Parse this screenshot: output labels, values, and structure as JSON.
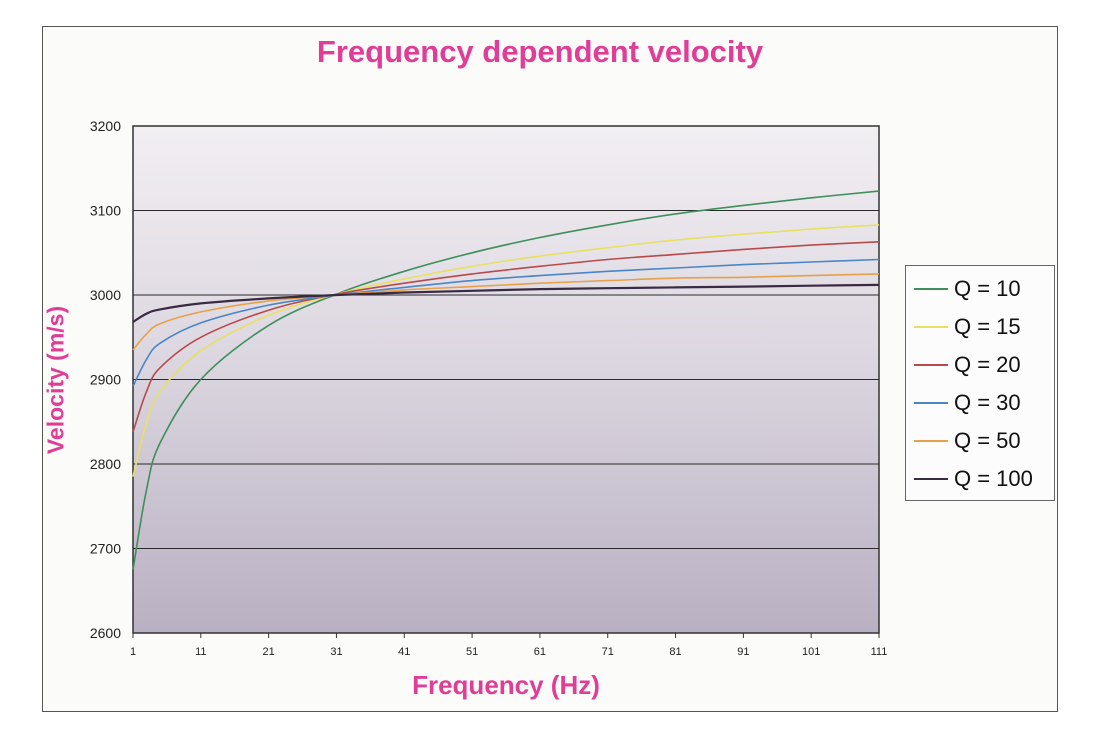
{
  "chart_data": {
    "type": "line",
    "title": "Frequency dependent velocity",
    "xlabel": "Frequency (Hz)",
    "ylabel": "Velocity (m/s)",
    "xlim": [
      1,
      111
    ],
    "ylim": [
      2600,
      3200
    ],
    "xticks": [
      1,
      11,
      21,
      31,
      41,
      51,
      61,
      71,
      81,
      91,
      101,
      111
    ],
    "yticks": [
      2600,
      2700,
      2800,
      2900,
      3000,
      3100,
      3200
    ],
    "grid": "horizontal",
    "legend_position": "right",
    "x": [
      1,
      3,
      5,
      11,
      21,
      31,
      41,
      51,
      61,
      71,
      81,
      91,
      101,
      111
    ],
    "series": [
      {
        "name": "Q = 10",
        "color": "#3f8f5c",
        "values": [
          2675,
          2770,
          2825,
          2900,
          2964,
          3001,
          3028,
          3050,
          3068,
          3083,
          3096,
          3106,
          3115,
          3123
        ]
      },
      {
        "name": "Q = 15",
        "color": "#e8e060",
        "values": [
          2785,
          2849,
          2886,
          2934,
          2976,
          3001,
          3019,
          3034,
          3046,
          3056,
          3065,
          3072,
          3078,
          3083
        ]
      },
      {
        "name": "Q = 20",
        "color": "#b84a4a",
        "values": [
          2838,
          2886,
          2914,
          2950,
          2982,
          3001,
          3014,
          3025,
          3034,
          3042,
          3048,
          3054,
          3059,
          3063
        ]
      },
      {
        "name": "Q = 30",
        "color": "#4a86c6",
        "values": [
          2892,
          2924,
          2943,
          2967,
          2988,
          3000,
          3009,
          3017,
          3023,
          3028,
          3032,
          3036,
          3039,
          3042
        ]
      },
      {
        "name": "Q = 50",
        "color": "#e8a04a",
        "values": [
          2935,
          2954,
          2966,
          2980,
          2993,
          3000,
          3006,
          3010,
          3014,
          3017,
          3020,
          3021,
          3023,
          3025
        ]
      },
      {
        "name": "Q = 100",
        "color": "#3a2a44",
        "values": [
          2968,
          2978,
          2983,
          2990,
          2996,
          3000,
          3003,
          3005,
          3007,
          3008,
          3009,
          3010,
          3011,
          3012
        ]
      }
    ]
  }
}
